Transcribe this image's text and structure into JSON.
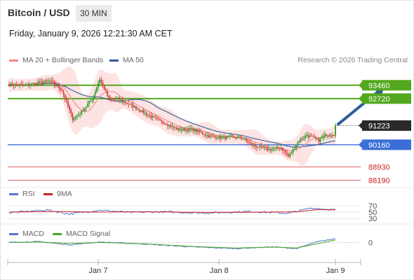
{
  "header": {
    "title": "Bitcoin / USD",
    "timeframe": "30 MIN",
    "datetime": "Friday, January 9, 2026 12:21:30 AM CET"
  },
  "credit": "Research © 2026 Trading Central",
  "colors": {
    "ma20": "#f08a8a",
    "ma50": "#2c5d9a",
    "band": "#fdd9d9",
    "up": "#2a9a2a",
    "down": "#d63b3b",
    "resistance": "#53a81f",
    "pivot": "#3b6fd8",
    "support": "#e06464",
    "last": "#2a2a2a",
    "arrow": "#2c5d9a",
    "rsi": "#5577cc",
    "rsi_ma": "#cc2222",
    "macd": "#5577cc",
    "macd_signal": "#44aa22"
  },
  "chart_data": [
    {
      "type": "candlestick",
      "x_ticks": [
        "Jan 7",
        "Jan 8",
        "Jan 9"
      ],
      "legend": [
        "MA 20 + Bollinger Bands",
        "MA 50"
      ],
      "ylim": [
        87900,
        94500
      ],
      "levels": [
        {
          "label": "93460",
          "value": 93460,
          "kind": "resistance"
        },
        {
          "label": "92720",
          "value": 92720,
          "kind": "resistance"
        },
        {
          "label": "91223",
          "value": 91223,
          "kind": "last"
        },
        {
          "label": "90160",
          "value": 90160,
          "kind": "pivot"
        },
        {
          "label": "88930",
          "value": 88930,
          "kind": "support"
        },
        {
          "label": "88190",
          "value": 88190,
          "kind": "support"
        }
      ],
      "close_anchors": [
        [
          0,
          93500
        ],
        [
          10,
          93450
        ],
        [
          20,
          93600
        ],
        [
          27,
          93700
        ],
        [
          35,
          93200
        ],
        [
          42,
          91600
        ],
        [
          47,
          91900
        ],
        [
          55,
          92700
        ],
        [
          60,
          93800
        ],
        [
          66,
          92700
        ],
        [
          72,
          92700
        ],
        [
          82,
          92300
        ],
        [
          92,
          91800
        ],
        [
          102,
          91400
        ],
        [
          112,
          91000
        ],
        [
          122,
          91000
        ],
        [
          132,
          90650
        ],
        [
          142,
          90550
        ],
        [
          147,
          90600
        ],
        [
          155,
          90500
        ],
        [
          162,
          90100
        ],
        [
          172,
          89900
        ],
        [
          180,
          90000
        ],
        [
          185,
          89500
        ],
        [
          192,
          90400
        ],
        [
          197,
          90700
        ],
        [
          205,
          90400
        ],
        [
          210,
          90750
        ],
        [
          215,
          90750
        ]
      ],
      "arrow": {
        "from": [
          216,
          91223
        ],
        "to": [
          248,
          93460
        ]
      }
    },
    {
      "type": "line",
      "title": "RSI",
      "legend": [
        "RSI",
        "9MA"
      ],
      "levels": [
        70,
        50,
        30
      ],
      "ylim": [
        30,
        70
      ],
      "series": [
        {
          "name": "RSI",
          "anchors": [
            [
              0,
              48
            ],
            [
              25,
              57
            ],
            [
              40,
              44
            ],
            [
              60,
              56
            ],
            [
              80,
              49
            ],
            [
              100,
              51
            ],
            [
              130,
              47
            ],
            [
              160,
              52
            ],
            [
              185,
              46
            ],
            [
              200,
              63
            ],
            [
              216,
              57
            ]
          ]
        },
        {
          "name": "9MA",
          "anchors": [
            [
              0,
              50
            ],
            [
              30,
              52
            ],
            [
              60,
              50
            ],
            [
              90,
              51
            ],
            [
              130,
              49
            ],
            [
              170,
              50
            ],
            [
              190,
              51
            ],
            [
              205,
              58
            ],
            [
              216,
              57
            ]
          ]
        }
      ]
    },
    {
      "type": "line",
      "title": "MACD",
      "legend": [
        "MACD",
        "MACD Signal"
      ],
      "levels": [
        0
      ],
      "ylim": [
        -1000,
        400
      ],
      "series": [
        {
          "name": "MACD",
          "anchors": [
            [
              0,
              20
            ],
            [
              20,
              60
            ],
            [
              40,
              -150
            ],
            [
              60,
              40
            ],
            [
              90,
              -100
            ],
            [
              120,
              -280
            ],
            [
              150,
              -400
            ],
            [
              175,
              -280
            ],
            [
              190,
              -400
            ],
            [
              205,
              80
            ],
            [
              216,
              260
            ]
          ]
        },
        {
          "name": "MACD Signal",
          "anchors": [
            [
              0,
              10
            ],
            [
              20,
              40
            ],
            [
              40,
              -60
            ],
            [
              60,
              10
            ],
            [
              90,
              -80
            ],
            [
              120,
              -250
            ],
            [
              150,
              -360
            ],
            [
              175,
              -300
            ],
            [
              190,
              -360
            ],
            [
              205,
              -60
            ],
            [
              216,
              180
            ]
          ]
        }
      ]
    }
  ]
}
